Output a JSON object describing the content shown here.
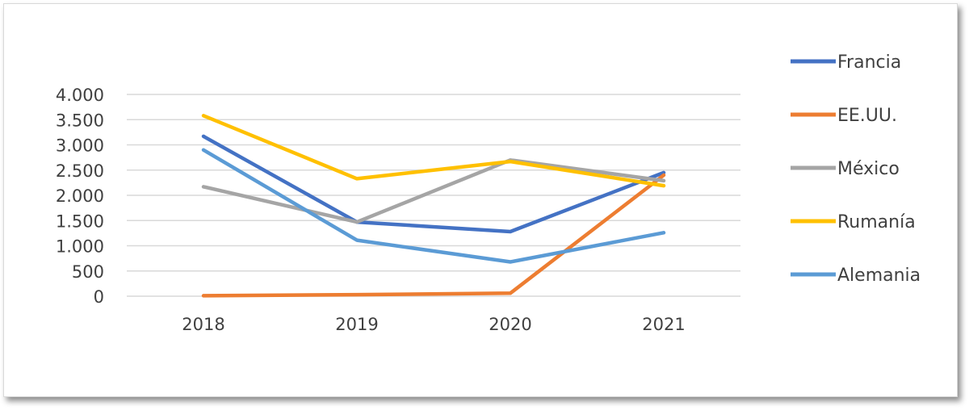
{
  "chart_data": {
    "type": "line",
    "title": "",
    "xlabel": "",
    "ylabel": "",
    "categories": [
      "2018",
      "2019",
      "2020",
      "2021"
    ],
    "ylim": [
      0,
      4000
    ],
    "yticks": [
      0,
      500,
      1000,
      1500,
      2000,
      2500,
      3000,
      3500,
      4000
    ],
    "ytick_labels": [
      "0",
      "500",
      "1.000",
      "1.500",
      "2.000",
      "2.500",
      "3.000",
      "3.500",
      "4.000"
    ],
    "grid": true,
    "legend_position": "right",
    "series": [
      {
        "name": "Francia",
        "color": "#4472C4",
        "values": [
          3170,
          1470,
          1280,
          2450
        ]
      },
      {
        "name": "EE.UU.",
        "color": "#ED7D31",
        "values": [
          10,
          30,
          60,
          2400
        ]
      },
      {
        "name": "México",
        "color": "#A5A5A5",
        "values": [
          2170,
          1470,
          2700,
          2290
        ]
      },
      {
        "name": "Rumanía",
        "color": "#FFC000",
        "values": [
          3580,
          2330,
          2670,
          2190
        ]
      },
      {
        "name": "Alemania",
        "color": "#5B9BD5",
        "values": [
          2900,
          1110,
          680,
          1260
        ]
      }
    ]
  }
}
